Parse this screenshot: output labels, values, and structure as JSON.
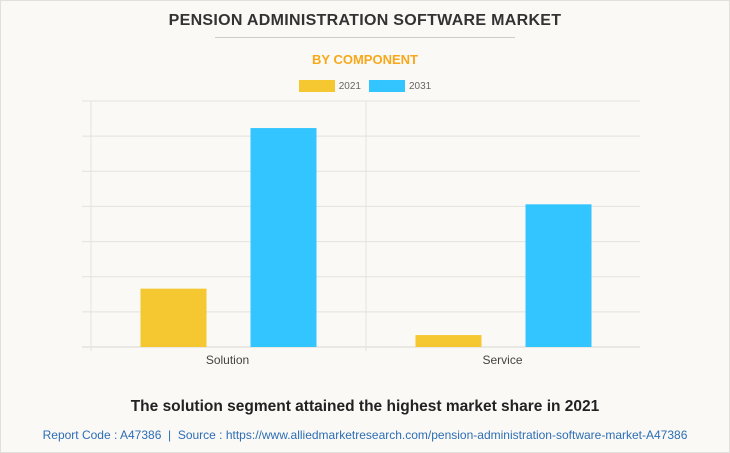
{
  "title": "PENSION ADMINISTRATION SOFTWARE MARKET",
  "subtitle": "BY COMPONENT",
  "caption": "The solution segment attained the highest market share in 2021",
  "footer": "Report Code : A47386  |  Source : https://www.alliedmarketresearch.com/pension-administration-software-market-A47386",
  "chart_data": {
    "type": "bar",
    "categories": [
      "Solution",
      "Service"
    ],
    "series": [
      {
        "name": "2021",
        "color": "#f5c731",
        "values": [
          1.66,
          0.34
        ]
      },
      {
        "name": "2031",
        "color": "#33c5ff",
        "values": [
          6.23,
          4.06
        ]
      }
    ],
    "ylim": [
      0,
      7
    ],
    "grid": true,
    "y_tick_labels_shown": false,
    "legend_placement": "top-center"
  }
}
